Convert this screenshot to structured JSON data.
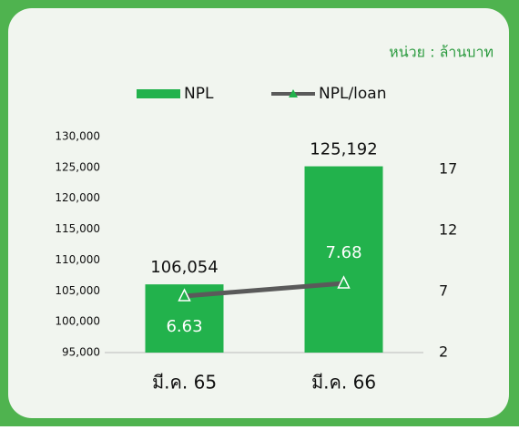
{
  "chart_data": {
    "type": "bar",
    "unit_label": "หน่วย : ล้านบาท",
    "categories": [
      "มี.ค. 65",
      "มี.ค. 66"
    ],
    "series": [
      {
        "name": "NPL",
        "type": "bar",
        "color": "#22b24c",
        "values": [
          106054,
          125192
        ],
        "value_labels": [
          "106,054",
          "125,192"
        ]
      },
      {
        "name": "NPL/loan",
        "type": "line",
        "axis": "y2",
        "color": "#5a5a5a",
        "values": [
          6.63,
          7.68
        ]
      }
    ],
    "ylim": [
      95000,
      130000
    ],
    "yticks": [
      {
        "value": 95000,
        "label": "95,000"
      },
      {
        "value": 100000,
        "label": "100,000"
      },
      {
        "value": 105000,
        "label": "105,000"
      },
      {
        "value": 110000,
        "label": "110,000"
      },
      {
        "value": 115000,
        "label": "115,000"
      },
      {
        "value": 120000,
        "label": "120,000"
      },
      {
        "value": 125000,
        "label": "125,000"
      },
      {
        "value": 130000,
        "label": "130,000"
      }
    ],
    "y2lim": [
      2,
      19.7
    ],
    "y2ticks": [
      2,
      7,
      12,
      17
    ],
    "legend": "top"
  }
}
